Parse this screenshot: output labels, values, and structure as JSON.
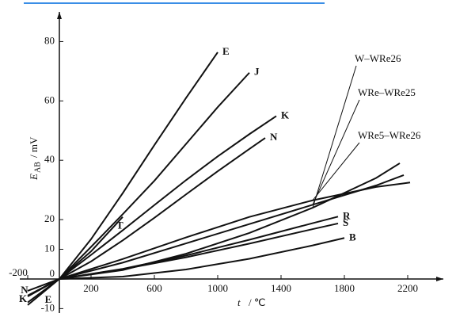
{
  "chart_data": {
    "type": "line",
    "ylabel_main": "E",
    "ylabel_sub": "AB",
    "ylabel_unit": "/ mV",
    "xlabel_var": "t",
    "xlabel_unit": "/ ℃",
    "line_color": "#111111",
    "xlim": [
      -250,
      2425
    ],
    "ylim": [
      -11.5,
      90
    ],
    "xticks": [
      -200,
      200,
      600,
      1000,
      1400,
      1800,
      2200
    ],
    "yticks": [
      -10,
      0,
      10,
      20,
      40,
      60,
      80
    ],
    "series": [
      {
        "name": "E",
        "x": [
          -200,
          0,
          200,
          400,
          600,
          800,
          1000
        ],
        "values": [
          -8.8,
          0,
          13.4,
          28.9,
          45.1,
          61.0,
          76.4
        ]
      },
      {
        "name": "J",
        "x": [
          -200,
          0,
          200,
          400,
          600,
          800,
          1000,
          1200
        ],
        "values": [
          -7.9,
          0,
          10.8,
          21.8,
          33.1,
          45.5,
          57.9,
          69.5
        ]
      },
      {
        "name": "K",
        "x": [
          -200,
          0,
          200,
          400,
          600,
          800,
          1000,
          1200,
          1370
        ],
        "values": [
          -5.9,
          0,
          8.1,
          16.4,
          24.9,
          33.3,
          41.3,
          48.8,
          54.9
        ]
      },
      {
        "name": "N",
        "x": [
          -200,
          0,
          200,
          400,
          600,
          800,
          1000,
          1200,
          1300
        ],
        "values": [
          -4.0,
          0,
          5.9,
          13.0,
          20.6,
          28.5,
          36.3,
          43.8,
          47.5
        ]
      },
      {
        "name": "T",
        "x": [
          -200,
          0,
          200,
          400
        ],
        "values": [
          -5.6,
          0,
          9.3,
          20.9
        ]
      },
      {
        "name": "R",
        "x": [
          0,
          400,
          800,
          1200,
          1600,
          1760
        ],
        "values": [
          0,
          3.4,
          7.9,
          13.2,
          18.8,
          21.0
        ]
      },
      {
        "name": "S",
        "x": [
          0,
          400,
          800,
          1200,
          1600,
          1760
        ],
        "values": [
          0,
          3.3,
          7.3,
          11.9,
          16.8,
          18.7
        ]
      },
      {
        "name": "B",
        "x": [
          0,
          400,
          800,
          1200,
          1600,
          1800
        ],
        "values": [
          0,
          0.8,
          3.2,
          6.8,
          11.3,
          13.8
        ]
      },
      {
        "name": "W–WRe26",
        "x": [
          0,
          400,
          800,
          1200,
          1600,
          2000,
          2150
        ],
        "values": [
          0,
          3,
          8.5,
          15.5,
          24,
          34,
          39
        ]
      },
      {
        "name": "WRe–WRe25",
        "x": [
          0,
          400,
          800,
          1200,
          1600,
          2000,
          2175
        ],
        "values": [
          0,
          5.5,
          12,
          18.5,
          25,
          31.5,
          35
        ]
      },
      {
        "name": "WRe5–WRe26",
        "x": [
          0,
          400,
          800,
          1200,
          1600,
          2000,
          2215
        ],
        "values": [
          0,
          6.7,
          14,
          20.9,
          26.5,
          31,
          32.5
        ]
      }
    ]
  }
}
